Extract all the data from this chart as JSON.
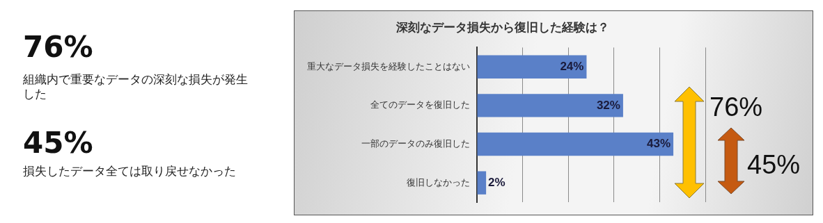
{
  "chart_data": {
    "type": "bar",
    "orientation": "horizontal",
    "title": "深刻なデータ損失から復旧した経験は？",
    "categories": [
      "重大なデータ損失を経験したことはない",
      "全てのデータを復旧した",
      "一部のデータのみ復旧した",
      "復旧しなかった"
    ],
    "values": [
      24,
      32,
      43,
      2
    ],
    "color": "#5a80c8",
    "value_labels": [
      "24%",
      "32%",
      "43%",
      "2%"
    ],
    "tick_labels": "y",
    "grid": "x",
    "legend": false,
    "annotations": [
      "76%",
      "組織内で重要なデータの深刻な損失が発生した",
      "45%",
      "損失したデータ全ては取り戻せなかった",
      "76%",
      "45%"
    ]
  }
}
